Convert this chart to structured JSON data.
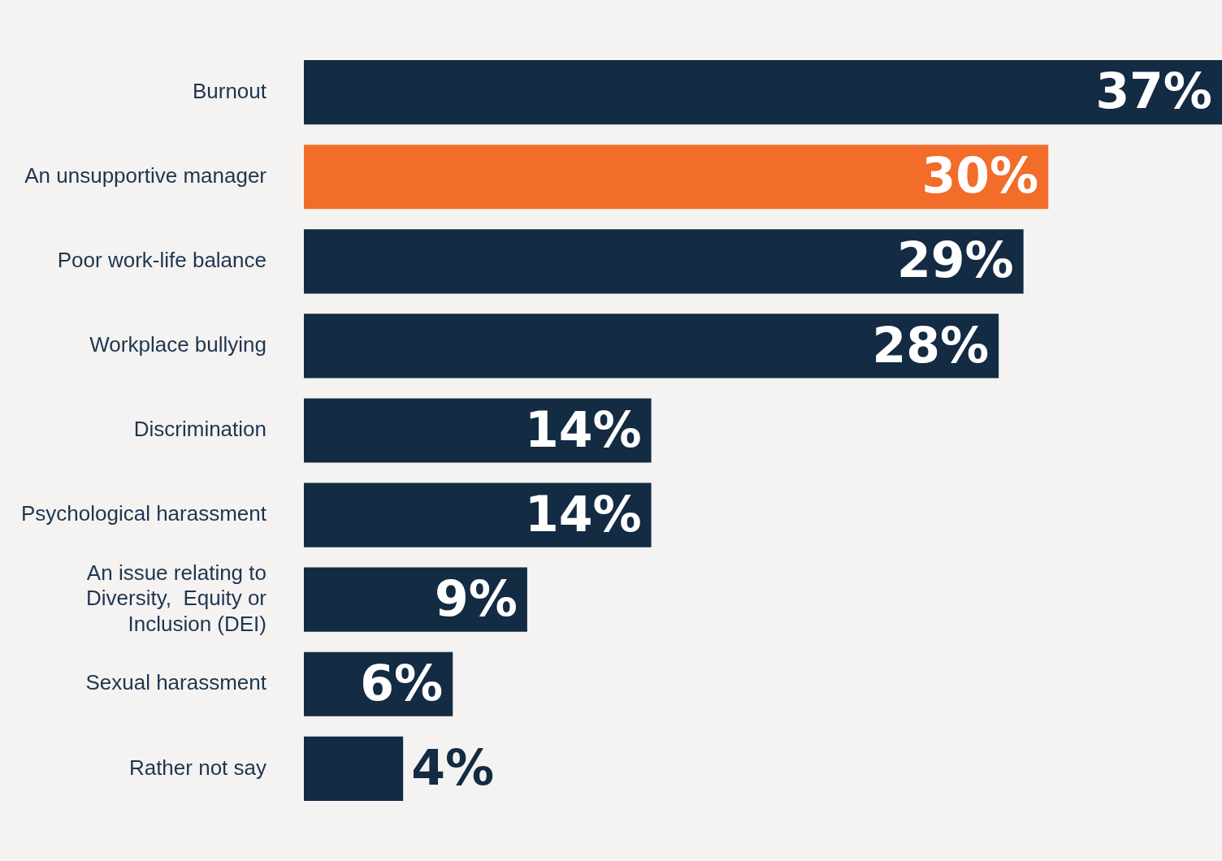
{
  "chart_data": {
    "type": "bar",
    "orientation": "horizontal",
    "categories": [
      "Burnout",
      "An unsupportive manager",
      "Poor work-life balance",
      "Workplace bullying",
      "Discrimination",
      "Psychological harassment",
      "An issue relating to Diversity,  Equity or Inclusion (DEI)",
      "Sexual harassment",
      "Rather not say"
    ],
    "values": [
      37,
      30,
      29,
      28,
      14,
      14,
      9,
      6,
      4
    ],
    "colors": [
      "#132b43",
      "#f26c2a",
      "#132b43",
      "#132b43",
      "#132b43",
      "#132b43",
      "#132b43",
      "#132b43",
      "#132b43"
    ],
    "value_labels": [
      "37%",
      "30%",
      "29%",
      "28%",
      "14%",
      "14%",
      "9%",
      "6%",
      "4%"
    ],
    "grid": false,
    "legend": false
  }
}
